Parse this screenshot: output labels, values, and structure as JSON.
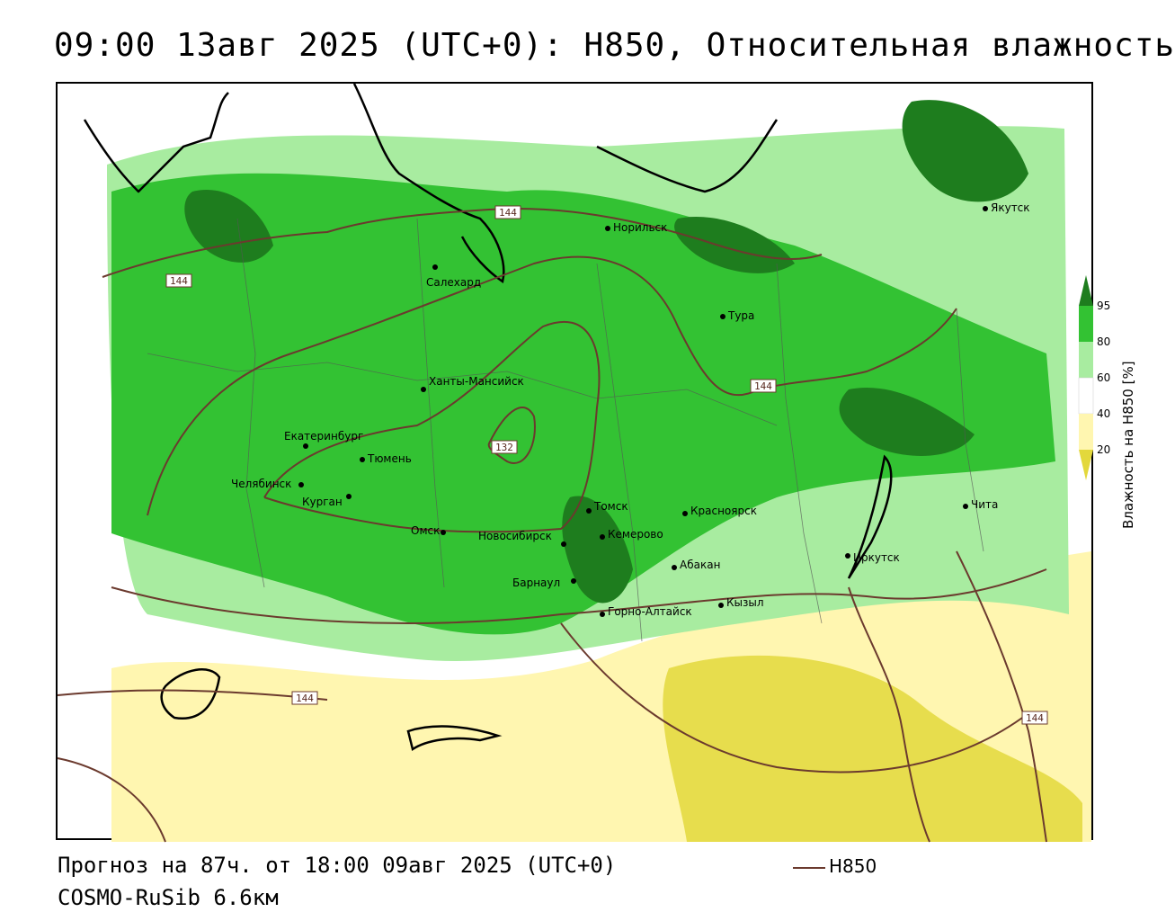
{
  "header": {
    "title": "09:00 13авг 2025 (UTC+0): H850, Относительная влажность"
  },
  "footer": {
    "forecast": "Прогноз на 87ч. от 18:00 09авг 2025 (UTC+0)",
    "model": "COSMO-RuSib 6.6км",
    "line_legend": "H850"
  },
  "colorbar": {
    "title": "Влажность на H850 [%]",
    "ticks": [
      "95",
      "80",
      "60",
      "40",
      "20"
    ],
    "colors": {
      "very_wet": "#1e7d1e",
      "wet": "#33c233",
      "moist": "#a8eca0",
      "neutral": "#ffffff",
      "dry": "#fff6b0",
      "very_dry": "#e3d83c"
    }
  },
  "cities": [
    {
      "name": "Якутск"
    },
    {
      "name": "Норильск"
    },
    {
      "name": "Салехард"
    },
    {
      "name": "Тура"
    },
    {
      "name": "Ханты-Мансийск"
    },
    {
      "name": "Екатеринбург"
    },
    {
      "name": "Тюмень"
    },
    {
      "name": "Челябинск"
    },
    {
      "name": "Курган"
    },
    {
      "name": "Омск"
    },
    {
      "name": "Новосибирск"
    },
    {
      "name": "Томск"
    },
    {
      "name": "Кемерово"
    },
    {
      "name": "Красноярск"
    },
    {
      "name": "Абакан"
    },
    {
      "name": "Барнаул"
    },
    {
      "name": "Горно-Алтайск"
    },
    {
      "name": "Кызыл"
    },
    {
      "name": "Иркутск"
    },
    {
      "name": "Чита"
    }
  ],
  "contour_labels": [
    "144",
    "144",
    "144",
    "144",
    "132",
    "144"
  ],
  "line_color": "#6b3a2e"
}
